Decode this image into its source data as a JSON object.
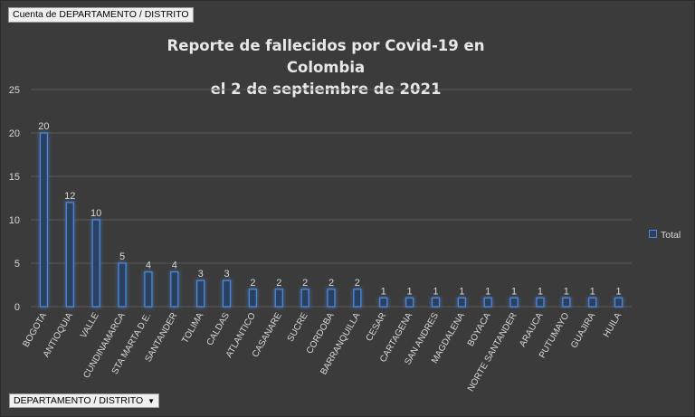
{
  "pivot": {
    "value_field": "Cuenta de DEPARTAMENTO / DISTRITO",
    "axis_field": "DEPARTAMENTO / DISTRITO",
    "axis_dropdown_icon": "dropdown-triangle-icon"
  },
  "chart_data": {
    "type": "bar",
    "title_line1": "Reporte de fallecidos por Covid-19 en Colombia",
    "title_line2": "el 2 de septiembre de 2021",
    "categories": [
      "BOGOTA",
      "ANTIOQUIA",
      "VALLE",
      "CUNDINAMARCA",
      "STA MARTA D.E.",
      "SANTANDER",
      "TOLIMA",
      "CALDAS",
      "ATLANTICO",
      "CASANARE",
      "SUCRE",
      "CORDOBA",
      "BARRANQUILLA",
      "CESAR",
      "CARTAGENA",
      "SAN ANDRES",
      "MAGDALENA",
      "BOYACA",
      "NORTE SANTANDER",
      "ARAUCA",
      "PUTUMAYO",
      "GUAJIRA",
      "HUILA"
    ],
    "series": [
      {
        "name": "Total",
        "values": [
          20,
          12,
          10,
          5,
          4,
          4,
          3,
          3,
          2,
          2,
          2,
          2,
          2,
          1,
          1,
          1,
          1,
          1,
          1,
          1,
          1,
          1,
          1
        ]
      }
    ],
    "yticks": [
      0,
      5,
      10,
      15,
      20,
      25
    ],
    "ylim": [
      0,
      25
    ],
    "grid": true,
    "legend_position": "right",
    "colors": {
      "bar_fill": "#2c3f60",
      "bar_edge": "#4f86d6",
      "grid": "#5a5a5a",
      "text": "#d9d9d9"
    }
  }
}
